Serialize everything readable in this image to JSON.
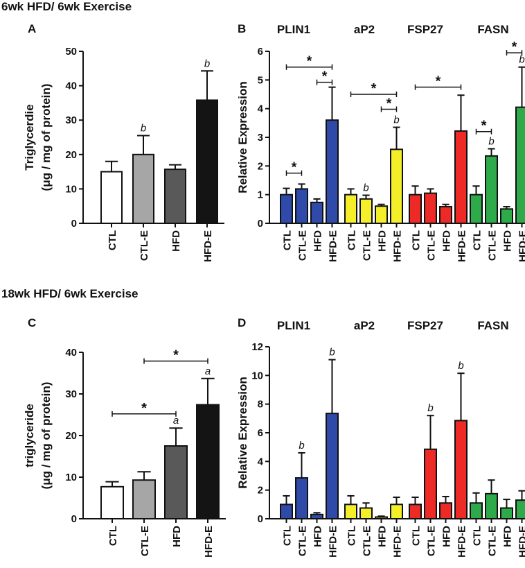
{
  "figure": {
    "section_top": "6wk HFD/ 6wk Exercise",
    "section_bottom": "18wk HFD/ 6wk Exercise"
  },
  "chart_data": [
    {
      "id": "A",
      "panel_label": "A",
      "type": "bar",
      "ylabel": [
        "Triglycerdie",
        "(μg / mg of protein)"
      ],
      "ylim": [
        0,
        50
      ],
      "yticks": [
        0,
        10,
        20,
        30,
        40,
        50
      ],
      "categories": [
        "CTL",
        "CTL-E",
        "HFD",
        "HFD-E"
      ],
      "colors": [
        "#ffffff",
        "#a6a6a6",
        "#595959",
        "#141414"
      ],
      "values": [
        15,
        20,
        15.7,
        35.8
      ],
      "errors": [
        3,
        5.5,
        1.3,
        8.5
      ],
      "annotations": [
        "",
        "b",
        "",
        "b"
      ],
      "significance": []
    },
    {
      "id": "B",
      "panel_label": "B",
      "type": "bar",
      "ylabel": [
        "Relative Expression"
      ],
      "ylim": [
        0,
        6
      ],
      "yticks": [
        0,
        1,
        2,
        3,
        4,
        5,
        6
      ],
      "groups": [
        {
          "name": "PLIN1",
          "color": "#2f4aa8",
          "categories": [
            "CTL",
            "CTL-E",
            "HFD",
            "HFD-E"
          ],
          "values": [
            1.0,
            1.2,
            0.73,
            3.6
          ],
          "errors": [
            0.22,
            0.17,
            0.12,
            1.15
          ],
          "annotations": [
            "",
            "",
            "",
            ""
          ]
        },
        {
          "name": "aP2",
          "color": "#f5ef2a",
          "categories": [
            "CTL",
            "CTL-E",
            "HFD",
            "HFD-E"
          ],
          "values": [
            1.0,
            0.85,
            0.6,
            2.58
          ],
          "errors": [
            0.2,
            0.13,
            0.06,
            0.77
          ],
          "annotations": [
            "",
            "b",
            "",
            "b"
          ]
        },
        {
          "name": "FSP27",
          "color": "#ee2a26",
          "categories": [
            "CTL",
            "CTL-E",
            "HFD",
            "HFD-E"
          ],
          "values": [
            1.0,
            1.05,
            0.58,
            3.22
          ],
          "errors": [
            0.3,
            0.15,
            0.08,
            1.25
          ],
          "annotations": [
            "",
            "",
            "",
            ""
          ]
        },
        {
          "name": "FASN",
          "color": "#2eaa4a",
          "categories": [
            "CTL",
            "CTL-E",
            "HFD",
            "HFD-E"
          ],
          "values": [
            1.0,
            2.35,
            0.5,
            4.05
          ],
          "errors": [
            0.3,
            0.25,
            0.08,
            1.4
          ],
          "annotations": [
            "",
            "b",
            "",
            "b"
          ]
        }
      ],
      "significance": [
        {
          "group": 0,
          "from": 0,
          "to": 3,
          "y": 5.45,
          "label": "*"
        },
        {
          "group": 0,
          "from": 2,
          "to": 3,
          "y": 4.92,
          "label": "*"
        },
        {
          "group": 0,
          "from": 0,
          "to": 1,
          "y": 1.75,
          "label": "*"
        },
        {
          "group": 1,
          "from": 0,
          "to": 3,
          "y": 4.5,
          "label": "*"
        },
        {
          "group": 1,
          "from": 2,
          "to": 3,
          "y": 3.98,
          "label": "*"
        },
        {
          "group": 2,
          "from": 0,
          "to": 3,
          "y": 4.75,
          "label": "*"
        },
        {
          "group": 3,
          "from": 0,
          "to": 1,
          "y": 3.2,
          "label": "*"
        },
        {
          "group": 3,
          "from": 2,
          "to": 3,
          "y": 5.95,
          "label": "*"
        }
      ]
    },
    {
      "id": "C",
      "panel_label": "C",
      "type": "bar",
      "ylabel": [
        "triglyceride",
        "(μg / mg of protein)"
      ],
      "ylim": [
        0,
        40
      ],
      "yticks": [
        0,
        10,
        20,
        30,
        40
      ],
      "categories": [
        "CTL",
        "CTL-E",
        "HFD",
        "HFD-E"
      ],
      "colors": [
        "#ffffff",
        "#a6a6a6",
        "#595959",
        "#141414"
      ],
      "values": [
        7.7,
        9.3,
        17.5,
        27.4
      ],
      "errors": [
        1.2,
        2.0,
        4.3,
        6.3
      ],
      "annotations": [
        "",
        "",
        "a",
        "a"
      ],
      "significance": [
        {
          "from": 1,
          "to": 3,
          "y": 37.9,
          "label": "*"
        },
        {
          "from": 0,
          "to": 2,
          "y": 25.2,
          "label": "*"
        }
      ]
    },
    {
      "id": "D",
      "panel_label": "D",
      "type": "bar",
      "ylabel": [
        "Relative Expression"
      ],
      "ylim": [
        0,
        12
      ],
      "yticks": [
        0,
        2,
        4,
        6,
        8,
        10,
        12
      ],
      "groups": [
        {
          "name": "PLIN1",
          "color": "#2f4aa8",
          "categories": [
            "CTL",
            "CTL-E",
            "HFD",
            "HFD-E"
          ],
          "values": [
            1.0,
            2.85,
            0.3,
            7.35
          ],
          "errors": [
            0.6,
            1.75,
            0.12,
            3.75
          ],
          "annotations": [
            "",
            "b",
            "",
            "b"
          ]
        },
        {
          "name": "aP2",
          "color": "#f5ef2a",
          "categories": [
            "CTL",
            "CTL-E",
            "HFD",
            "HFD-E"
          ],
          "values": [
            1.0,
            0.75,
            0.12,
            1.0
          ],
          "errors": [
            0.6,
            0.35,
            0.06,
            0.5
          ],
          "annotations": [
            "",
            "",
            "",
            ""
          ]
        },
        {
          "name": "FSP27",
          "color": "#ee2a26",
          "categories": [
            "CTL",
            "CTL-E",
            "HFD",
            "HFD-E"
          ],
          "values": [
            1.0,
            4.85,
            1.1,
            6.85
          ],
          "errors": [
            0.5,
            2.35,
            0.45,
            3.3
          ],
          "annotations": [
            "",
            "b",
            "",
            "b"
          ]
        },
        {
          "name": "FASN",
          "color": "#2eaa4a",
          "categories": [
            "CTL",
            "CTL-E",
            "HFD",
            "HFD-E"
          ],
          "values": [
            1.1,
            1.75,
            0.75,
            1.3
          ],
          "errors": [
            0.7,
            0.95,
            0.6,
            0.65
          ],
          "annotations": [
            "",
            "",
            "",
            ""
          ]
        }
      ],
      "significance": []
    }
  ]
}
